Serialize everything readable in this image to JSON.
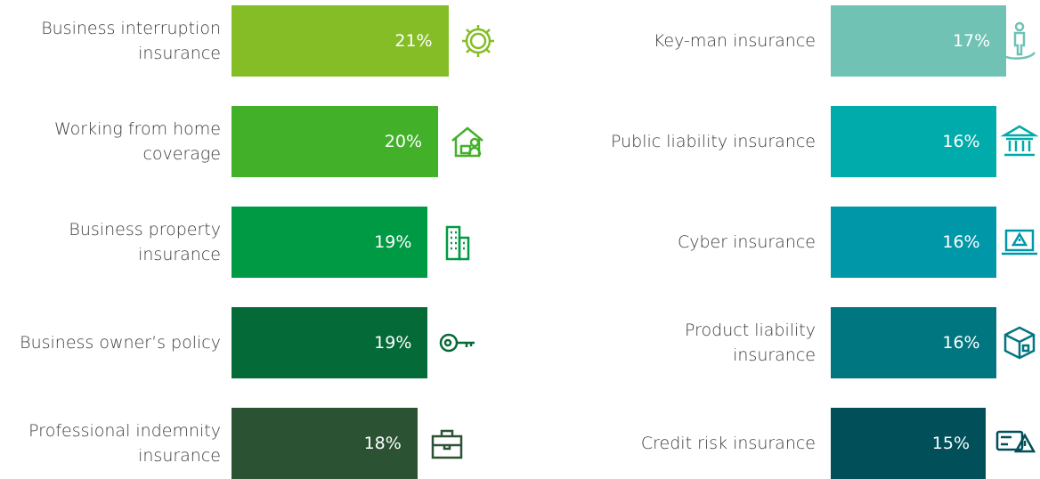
{
  "chart_data": [
    {
      "type": "bar",
      "orientation": "horizontal",
      "categories": [
        "Business interruption insurance",
        "Working from home coverage",
        "Business property insurance",
        "Business owner’s policy",
        "Professional indemnity insurance"
      ],
      "values": [
        21,
        20,
        19,
        19,
        18
      ],
      "value_labels": [
        "21%",
        "20%",
        "19%",
        "19%",
        "18%"
      ],
      "colors": [
        "#84bd26",
        "#43b02a",
        "#009a44",
        "#046a38",
        "#2c5234"
      ]
    },
    {
      "type": "bar",
      "orientation": "horizontal",
      "categories": [
        "Key-man insurance",
        "Public liability insurance",
        "Cyber insurance",
        "Product liability insurance",
        "Credit risk insurance"
      ],
      "values": [
        17,
        16,
        16,
        16,
        15
      ],
      "value_labels": [
        "17%",
        "16%",
        "16%",
        "16%",
        "15%"
      ],
      "colors": [
        "#6fc2b4",
        "#00abab",
        "#0097a9",
        "#007680",
        "#004f59"
      ]
    }
  ]
}
